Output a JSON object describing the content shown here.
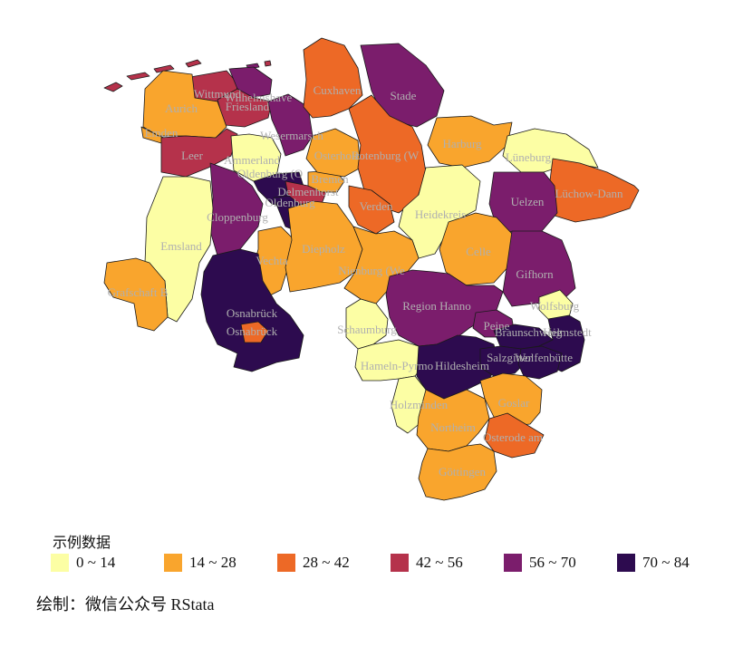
{
  "legend": {
    "title": "示例数据",
    "items": [
      {
        "label": "0 ~ 14",
        "color": "#fcfea4"
      },
      {
        "label": "14 ~ 28",
        "color": "#f9a52d"
      },
      {
        "label": "28 ~ 42",
        "color": "#ed6926"
      },
      {
        "label": "42 ~ 56",
        "color": "#b5324b"
      },
      {
        "label": "56 ~ 70",
        "color": "#7b1d6c"
      },
      {
        "label": "70 ~ 84",
        "color": "#2d0b4f"
      }
    ]
  },
  "caption": "绘制：微信公众号 RStata",
  "regions": [
    {
      "name": "Wittmund",
      "class": 3
    },
    {
      "name": "Wilhelmshave",
      "class": 4
    },
    {
      "name": "Friesland",
      "class": 3
    },
    {
      "name": "Aurich",
      "class": 1
    },
    {
      "name": "Emden",
      "class": 1
    },
    {
      "name": "Leer",
      "class": 3
    },
    {
      "name": "Ammerland",
      "class": 0
    },
    {
      "name": "Wesermarsch",
      "class": 4
    },
    {
      "name": "Oldenburg (O",
      "class": 5
    },
    {
      "name": "Oldenburg",
      "class": 5
    },
    {
      "name": "Delmenhorst",
      "class": 3
    },
    {
      "name": "Bremen",
      "class": 1
    },
    {
      "name": "Osterholz",
      "class": 1
    },
    {
      "name": "Cuxhaven",
      "class": 2
    },
    {
      "name": "Stade",
      "class": 4
    },
    {
      "name": "Rotenburg (W",
      "class": 2
    },
    {
      "name": "Verden",
      "class": 2
    },
    {
      "name": "Harburg",
      "class": 1
    },
    {
      "name": "Lüneburg",
      "class": 0
    },
    {
      "name": "Lüchow-Dann",
      "class": 2
    },
    {
      "name": "Uelzen",
      "class": 4
    },
    {
      "name": "Heidekreis",
      "class": 0
    },
    {
      "name": "Celle",
      "class": 1
    },
    {
      "name": "Gifhorn",
      "class": 4
    },
    {
      "name": "Cloppenburg",
      "class": 4
    },
    {
      "name": "Emsland",
      "class": 0
    },
    {
      "name": "Vechta",
      "class": 1
    },
    {
      "name": "Diepholz",
      "class": 1
    },
    {
      "name": "Nienburg (We",
      "class": 1
    },
    {
      "name": "Grafschaft B",
      "class": 1
    },
    {
      "name": "Osnabrück",
      "class": 5
    },
    {
      "name": "Osnabrück",
      "class": 2
    },
    {
      "name": "Region Hanno",
      "class": 4
    },
    {
      "name": "Schaumburg",
      "class": 0
    },
    {
      "name": "Hameln-Pyrmo",
      "class": 0
    },
    {
      "name": "Hildesheim",
      "class": 5
    },
    {
      "name": "Peine",
      "class": 4
    },
    {
      "name": "Braunschweig",
      "class": 5
    },
    {
      "name": "Wolfsburg",
      "class": 0
    },
    {
      "name": "Helmstedt",
      "class": 5
    },
    {
      "name": "Salzgitter",
      "class": 5
    },
    {
      "name": "Wolfenbütte",
      "class": 5
    },
    {
      "name": "Holzminden",
      "class": 0
    },
    {
      "name": "Goslar",
      "class": 1
    },
    {
      "name": "Northeim",
      "class": 1
    },
    {
      "name": "Osterode am",
      "class": 2
    },
    {
      "name": "Göttingen",
      "class": 1
    }
  ]
}
